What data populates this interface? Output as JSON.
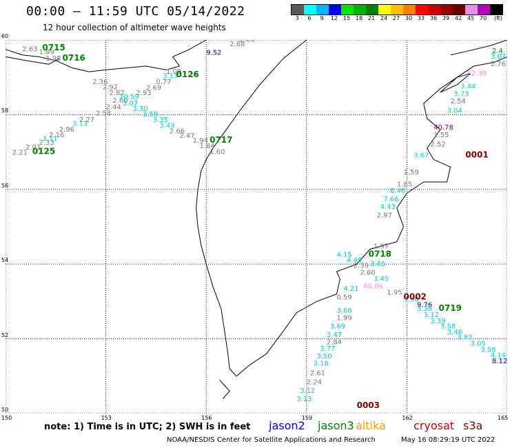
{
  "title": "00:00 – 11:59 UTC 05/14/2022",
  "subtitle": "12 hour collection of altimeter wave heights",
  "legend": {
    "colors": [
      "#5a5a5a",
      "#00ffff",
      "#00b3ff",
      "#0000e6",
      "#00e600",
      "#00b300",
      "#008000",
      "#ffff00",
      "#ffbf00",
      "#ff8000",
      "#ff0000",
      "#cc0000",
      "#990000",
      "#660000",
      "#e68fe6",
      "#b300b3",
      "#000000"
    ],
    "labels": [
      "3",
      "6",
      "9",
      "12",
      "15",
      "18",
      "21",
      "24",
      "27",
      "30",
      "33",
      "36",
      "39",
      "42",
      "45",
      "70",
      "(ft)"
    ]
  },
  "axes": {
    "lat_labels": [
      "60",
      "58",
      "56",
      "54",
      "52",
      "50"
    ],
    "lon_labels": [
      "150",
      "153",
      "156",
      "159",
      "162",
      "165"
    ]
  },
  "colors": {
    "gray": "#777777",
    "cyan": "#00cccc",
    "green": "#008000",
    "darkred": "#800000",
    "navy": "#0000a0",
    "pink": "#ff88ff",
    "purple": "#800080"
  },
  "pass_labels": [
    {
      "text": "0715",
      "lon": 151.1,
      "lat": 59.72,
      "color": "green"
    },
    {
      "text": "0716",
      "lon": 151.7,
      "lat": 59.45,
      "color": "green"
    },
    {
      "text": "0126",
      "lon": 155.1,
      "lat": 59.0,
      "color": "green"
    },
    {
      "text": "0125",
      "lon": 150.8,
      "lat": 56.95,
      "color": "green"
    },
    {
      "text": "0717",
      "lon": 156.1,
      "lat": 57.25,
      "color": "green"
    },
    {
      "text": "0718",
      "lon": 160.85,
      "lat": 54.2,
      "color": "green"
    },
    {
      "text": "0719",
      "lon": 162.95,
      "lat": 52.75,
      "color": "green"
    },
    {
      "text": "0001",
      "lon": 163.75,
      "lat": 56.85,
      "color": "darkred"
    },
    {
      "text": "0002",
      "lon": 161.9,
      "lat": 53.05,
      "color": "darkred"
    },
    {
      "text": "0003",
      "lon": 160.5,
      "lat": 50.15,
      "color": "darkred"
    }
  ],
  "readings": [
    {
      "text": "2.63",
      "lon": 150.5,
      "lat": 59.7,
      "color": "gray"
    },
    {
      "text": "1.89",
      "lon": 151.0,
      "lat": 59.62,
      "color": "gray"
    },
    {
      "text": "1.98",
      "lon": 151.2,
      "lat": 59.45,
      "color": "gray"
    },
    {
      "text": "2.36",
      "lon": 152.6,
      "lat": 58.82,
      "color": "gray"
    },
    {
      "text": "2.92",
      "lon": 152.9,
      "lat": 58.68,
      "color": "gray"
    },
    {
      "text": "2.82",
      "lon": 153.1,
      "lat": 58.52,
      "color": "gray"
    },
    {
      "text": "2.60",
      "lon": 153.2,
      "lat": 58.32,
      "color": "gray"
    },
    {
      "text": "2.44",
      "lon": 153.0,
      "lat": 58.15,
      "color": "gray"
    },
    {
      "text": "2.58",
      "lon": 152.7,
      "lat": 57.98,
      "color": "gray"
    },
    {
      "text": "2.27",
      "lon": 152.2,
      "lat": 57.8,
      "color": "gray"
    },
    {
      "text": "2.96",
      "lon": 151.6,
      "lat": 57.55,
      "color": "gray"
    },
    {
      "text": "2.16",
      "lon": 151.3,
      "lat": 57.4,
      "color": "gray"
    },
    {
      "text": "2.33",
      "lon": 151.0,
      "lat": 57.2,
      "color": "gray"
    },
    {
      "text": "2.01",
      "lon": 150.6,
      "lat": 57.07,
      "color": "gray"
    },
    {
      "text": "2.21",
      "lon": 150.2,
      "lat": 56.93,
      "color": "gray"
    },
    {
      "text": "3.13",
      "lon": 152.0,
      "lat": 57.7,
      "color": "cyan"
    },
    {
      "text": "3.11",
      "lon": 151.1,
      "lat": 57.3,
      "color": "cyan"
    },
    {
      "text": "2.93",
      "lon": 153.9,
      "lat": 58.52,
      "color": "gray"
    },
    {
      "text": "2.69",
      "lon": 154.2,
      "lat": 58.66,
      "color": "gray"
    },
    {
      "text": "0.77",
      "lon": 154.5,
      "lat": 58.82,
      "color": "gray"
    },
    {
      "text": "1.09",
      "lon": 154.8,
      "lat": 59.1,
      "color": "gray"
    },
    {
      "text": "3.13",
      "lon": 154.7,
      "lat": 58.98,
      "color": "cyan"
    },
    {
      "text": "10.59",
      "lon": 153.4,
      "lat": 58.42,
      "color": "cyan"
    },
    {
      "text": "3.07",
      "lon": 153.5,
      "lat": 58.25,
      "color": "cyan"
    },
    {
      "text": "3.30",
      "lon": 153.8,
      "lat": 58.1,
      "color": "cyan"
    },
    {
      "text": "3.59",
      "lon": 154.1,
      "lat": 57.95,
      "color": "cyan"
    },
    {
      "text": "3.35",
      "lon": 154.4,
      "lat": 57.8,
      "color": "cyan"
    },
    {
      "text": "3.43",
      "lon": 154.6,
      "lat": 57.65,
      "color": "cyan"
    },
    {
      "text": "2.66",
      "lon": 154.9,
      "lat": 57.5,
      "color": "gray"
    },
    {
      "text": "2.47",
      "lon": 155.2,
      "lat": 57.38,
      "color": "gray"
    },
    {
      "text": "1.94",
      "lon": 155.6,
      "lat": 57.25,
      "color": "gray"
    },
    {
      "text": "1.84",
      "lon": 155.8,
      "lat": 57.1,
      "color": "gray"
    },
    {
      "text": "1.60",
      "lon": 156.1,
      "lat": 56.95,
      "color": "gray"
    },
    {
      "text": "2.60",
      "lon": 157.0,
      "lat": 59.95,
      "color": "gray"
    },
    {
      "text": "2.68",
      "lon": 156.7,
      "lat": 59.83,
      "color": "gray"
    },
    {
      "text": "9.52",
      "lon": 156.0,
      "lat": 59.6,
      "color": "navy"
    },
    {
      "text": "3.07",
      "lon": 164.5,
      "lat": 59.5,
      "color": "cyan"
    },
    {
      "text": "2.76",
      "lon": 164.5,
      "lat": 59.3,
      "color": "gray"
    },
    {
      "text": "52.39",
      "lon": 163.8,
      "lat": 59.05,
      "color": "pink"
    },
    {
      "text": "3.44",
      "lon": 163.6,
      "lat": 58.7,
      "color": "cyan"
    },
    {
      "text": "3.73",
      "lon": 163.4,
      "lat": 58.5,
      "color": "cyan"
    },
    {
      "text": "2.54",
      "lon": 163.3,
      "lat": 58.3,
      "color": "gray"
    },
    {
      "text": "3.04",
      "lon": 163.2,
      "lat": 58.05,
      "color": "cyan"
    },
    {
      "text": "40.78",
      "lon": 162.8,
      "lat": 57.6,
      "color": "purple"
    },
    {
      "text": "1.55",
      "lon": 162.8,
      "lat": 57.4,
      "color": "gray"
    },
    {
      "text": "2.52",
      "lon": 162.7,
      "lat": 57.15,
      "color": "gray"
    },
    {
      "text": "3.67",
      "lon": 162.2,
      "lat": 56.85,
      "color": "cyan"
    },
    {
      "text": "1.59",
      "lon": 161.9,
      "lat": 56.4,
      "color": "gray"
    },
    {
      "text": "1.85",
      "lon": 161.7,
      "lat": 56.08,
      "color": "gray"
    },
    {
      "text": "6.46",
      "lon": 161.5,
      "lat": 55.9,
      "color": "cyan"
    },
    {
      "text": "7.66",
      "lon": 161.3,
      "lat": 55.68,
      "color": "cyan"
    },
    {
      "text": "4.43",
      "lon": 161.2,
      "lat": 55.48,
      "color": "cyan"
    },
    {
      "text": "2.97",
      "lon": 161.1,
      "lat": 55.25,
      "color": "gray"
    },
    {
      "text": "1.97",
      "lon": 161.0,
      "lat": 54.42,
      "color": "gray"
    },
    {
      "text": "4.15",
      "lon": 159.9,
      "lat": 54.2,
      "color": "cyan"
    },
    {
      "text": "4.48",
      "lon": 160.2,
      "lat": 54.05,
      "color": "cyan"
    },
    {
      "text": "2.39",
      "lon": 160.4,
      "lat": 53.9,
      "color": "gray"
    },
    {
      "text": "3.86",
      "lon": 160.9,
      "lat": 53.95,
      "color": "cyan"
    },
    {
      "text": "2.60",
      "lon": 160.6,
      "lat": 53.72,
      "color": "gray"
    },
    {
      "text": "3.45",
      "lon": 161.0,
      "lat": 53.55,
      "color": "cyan"
    },
    {
      "text": "60.06",
      "lon": 160.7,
      "lat": 53.35,
      "color": "pink"
    },
    {
      "text": "4.21",
      "lon": 160.1,
      "lat": 53.28,
      "color": "cyan"
    },
    {
      "text": "0.59",
      "lon": 159.9,
      "lat": 53.05,
      "color": "gray"
    },
    {
      "text": "1.95",
      "lon": 161.4,
      "lat": 53.18,
      "color": "gray"
    },
    {
      "text": "3.98",
      "lon": 161.9,
      "lat": 53.0,
      "color": "cyan"
    },
    {
      "text": "9.76",
      "lon": 162.3,
      "lat": 52.85,
      "color": "navy"
    },
    {
      "text": "3.36",
      "lon": 162.3,
      "lat": 52.75,
      "color": "cyan"
    },
    {
      "text": "3.12",
      "lon": 162.5,
      "lat": 52.58,
      "color": "cyan"
    },
    {
      "text": "3.39",
      "lon": 162.7,
      "lat": 52.42,
      "color": "cyan"
    },
    {
      "text": "3.58",
      "lon": 163.0,
      "lat": 52.28,
      "color": "cyan"
    },
    {
      "text": "3.46",
      "lon": 163.2,
      "lat": 52.12,
      "color": "cyan"
    },
    {
      "text": "3.83",
      "lon": 163.5,
      "lat": 51.98,
      "color": "cyan"
    },
    {
      "text": "3.05",
      "lon": 163.9,
      "lat": 51.82,
      "color": "cyan"
    },
    {
      "text": "3.58",
      "lon": 164.2,
      "lat": 51.65,
      "color": "cyan"
    },
    {
      "text": "4.14",
      "lon": 164.5,
      "lat": 51.5,
      "color": "cyan"
    },
    {
      "text": "8.12",
      "lon": 164.7,
      "lat": 51.35,
      "color": "navy"
    },
    {
      "text": "3.66",
      "lon": 159.9,
      "lat": 52.7,
      "color": "cyan"
    },
    {
      "text": "1.99",
      "lon": 159.9,
      "lat": 52.5,
      "color": "gray"
    },
    {
      "text": "3.69",
      "lon": 159.7,
      "lat": 52.28,
      "color": "cyan"
    },
    {
      "text": "3.47",
      "lon": 159.6,
      "lat": 52.05,
      "color": "cyan"
    },
    {
      "text": "2.84",
      "lon": 159.6,
      "lat": 51.85,
      "color": "gray"
    },
    {
      "text": "3.77",
      "lon": 159.4,
      "lat": 51.68,
      "color": "cyan"
    },
    {
      "text": "3.50",
      "lon": 159.3,
      "lat": 51.48,
      "color": "cyan"
    },
    {
      "text": "3.18",
      "lon": 159.2,
      "lat": 51.28,
      "color": "cyan"
    },
    {
      "text": "2.61",
      "lon": 159.1,
      "lat": 51.02,
      "color": "gray"
    },
    {
      "text": "2.24",
      "lon": 159.0,
      "lat": 50.78,
      "color": "gray"
    },
    {
      "text": "3.12",
      "lon": 158.8,
      "lat": 50.55,
      "color": "cyan"
    },
    {
      "text": "3.13",
      "lon": 158.7,
      "lat": 50.33,
      "color": "cyan"
    },
    {
      "text": "2.4",
      "lon": 164.75,
      "lat": 59.65,
      "color": "green"
    }
  ],
  "note": "note: 1) Time is in UTC; 2) SWH is in feet",
  "missions": [
    {
      "name": "jason2",
      "color": "#0000e6"
    },
    {
      "name": "jason3",
      "color": "#008000"
    },
    {
      "name": "altika",
      "color": "#ff9900"
    },
    {
      "name": "cryosat",
      "color": "#cc0000"
    },
    {
      "name": "s3a",
      "color": "#800000"
    }
  ],
  "footer_left": "NOAA/NESDIS Center for Satellite Applications and Research",
  "footer_right": "May 16 08:29:19 UTC 2022"
}
